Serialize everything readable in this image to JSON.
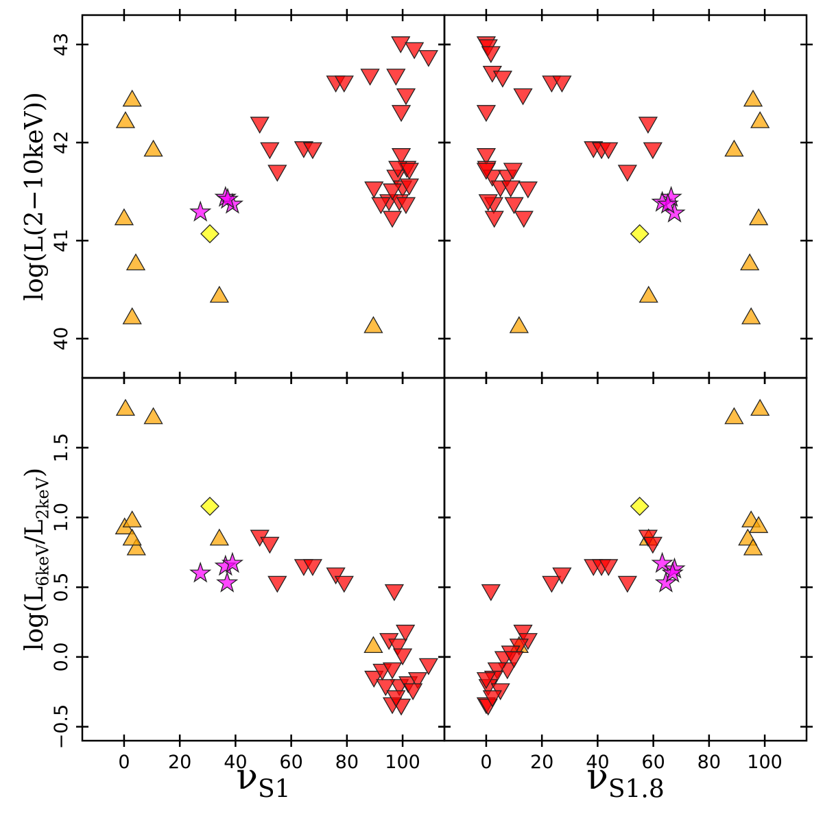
{
  "chart_data": [
    {
      "type": "scatter",
      "ylabel": "log(L(2−10keV))",
      "xtick_labels": false,
      "ytick_labels": true,
      "xlim": [
        -15,
        115
      ],
      "xticks": [
        0,
        20,
        40,
        60,
        80,
        100
      ],
      "ylim": [
        39.6,
        43.3
      ],
      "yticks": [
        40,
        41,
        42,
        43
      ],
      "series": [
        {
          "color": "#ffa500",
          "marker": "triangle-up",
          "x": [
            2.9,
            0.5,
            10.5,
            0,
            4.2,
            2.9,
            34.2,
            89.5
          ],
          "values": [
            42.44,
            42.22,
            41.93,
            41.23,
            40.77,
            40.22,
            40.44,
            40.13
          ]
        },
        {
          "color": "#ffff00",
          "marker": "diamond",
          "x": [
            30.8
          ],
          "values": [
            41.07
          ]
        },
        {
          "color": "#ff00ff",
          "marker": "star",
          "x": [
            27.4,
            36.4,
            38.9,
            37.2
          ],
          "values": [
            41.29,
            41.44,
            41.37,
            41.42
          ]
        },
        {
          "color": "#ff0000",
          "marker": "triangle-down",
          "x": [
            48.7,
            52.3,
            55,
            64.5,
            67.7,
            76,
            79,
            88.3,
            97.6,
            99.3,
            104.2,
            109.3,
            101.2,
            99.5,
            89.7,
            95.1,
            96.3,
            99.5,
            101.5,
            97.6,
            100,
            102.4,
            92.2,
            98.8,
            101.2,
            96.3,
            98.3,
            102.4
          ],
          "values": [
            42.19,
            41.93,
            41.7,
            41.94,
            41.93,
            42.61,
            42.61,
            42.68,
            42.68,
            43.01,
            42.95,
            42.87,
            42.48,
            42.31,
            41.53,
            41.4,
            41.23,
            41.87,
            41.74,
            41.65,
            41.54,
            41.56,
            41.37,
            41.4,
            41.37,
            41.51,
            41.74,
            41.72
          ]
        }
      ]
    },
    {
      "type": "scatter",
      "xtick_labels": false,
      "ytick_labels": false,
      "xlim": [
        -15,
        115
      ],
      "xticks": [
        0,
        20,
        40,
        60,
        80,
        100
      ],
      "ylim": [
        39.6,
        43.3
      ],
      "yticks": [
        40,
        41,
        42,
        43
      ],
      "series": [
        {
          "color": "#ffa500",
          "marker": "triangle-up",
          "x": [
            95.8,
            98.3,
            89,
            97.8,
            94.6,
            95.1,
            58.3,
            11.8
          ],
          "values": [
            42.44,
            42.22,
            41.93,
            41.23,
            40.77,
            40.22,
            40.44,
            40.13
          ]
        },
        {
          "color": "#ffff00",
          "marker": "diamond",
          "x": [
            55.1
          ],
          "values": [
            41.07
          ]
        },
        {
          "color": "#ff00ff",
          "marker": "star",
          "x": [
            63.2,
            66.4,
            67.6,
            65.2
          ],
          "values": [
            41.39,
            41.44,
            41.28,
            41.37
          ]
        },
        {
          "color": "#ff0000",
          "marker": "triangle-down",
          "x": [
            0,
            0.7,
            1.7,
            2.2,
            5.9,
            0,
            13.2,
            23.5,
            27.2,
            38.5,
            41.4,
            43.9,
            58.1,
            59.8,
            50.7,
            0,
            0.2,
            2.2,
            5.1,
            7.6,
            9.6,
            2.7,
            0.7,
            8.8,
            15,
            13.5,
            10,
            2.9,
            0
          ],
          "values": [
            43.01,
            42.98,
            42.91,
            42.71,
            42.66,
            42.31,
            42.48,
            42.61,
            42.61,
            41.94,
            41.93,
            41.93,
            42.19,
            41.93,
            41.7,
            41.87,
            41.74,
            41.65,
            41.54,
            41.65,
            41.72,
            41.37,
            41.4,
            41.54,
            41.53,
            41.23,
            41.37,
            41.23,
            41.72
          ]
        }
      ]
    },
    {
      "type": "scatter",
      "ylabel": [
        "log(L",
        "6keV",
        "/L",
        "2keV",
        ")"
      ],
      "xlabel": [
        "ν",
        "S1"
      ],
      "xtick_labels": true,
      "ytick_labels": true,
      "xlim": [
        -15,
        115
      ],
      "xticks": [
        0,
        20,
        40,
        60,
        80,
        100
      ],
      "ylim": [
        -0.6,
        2.0
      ],
      "yticks": [
        {
          "value": -0.5,
          "label": "−0.5"
        },
        {
          "value": 0,
          "label": "0.0"
        },
        0.5,
        {
          "value": 1,
          "label": "1.0"
        },
        1.5
      ],
      "series": [
        {
          "color": "#ffa500",
          "marker": "triangle-up",
          "x": [
            0.5,
            10.5,
            0.2,
            2.9,
            4.4,
            2.9,
            34.2,
            89.5
          ],
          "values": [
            1.78,
            1.72,
            0.93,
            0.98,
            0.78,
            0.85,
            0.85,
            0.08
          ]
        },
        {
          "color": "#ffff00",
          "marker": "diamond",
          "x": [
            30.8
          ],
          "values": [
            1.08
          ]
        },
        {
          "color": "#ff00ff",
          "marker": "star",
          "x": [
            27.4,
            36.4,
            38.9,
            37
          ],
          "values": [
            0.6,
            0.65,
            0.67,
            0.53
          ]
        },
        {
          "color": "#ff0000",
          "marker": "triangle-down",
          "x": [
            48.7,
            52.3,
            55,
            64.5,
            67.7,
            76,
            79,
            97,
            109.3,
            89.7,
            92.7,
            95.1,
            98.3,
            101,
            100,
            96.3,
            99.5,
            98.8,
            102,
            105.4,
            96.3,
            103.7,
            93.9,
            97.6
          ],
          "values": [
            0.86,
            0.81,
            0.53,
            0.65,
            0.65,
            0.59,
            0.53,
            0.47,
            -0.06,
            -0.15,
            -0.1,
            0.12,
            0.08,
            0.18,
            0.01,
            -0.34,
            -0.35,
            -0.21,
            -0.19,
            -0.16,
            -0.09,
            -0.24,
            -0.21,
            -0.29
          ]
        }
      ]
    },
    {
      "type": "scatter",
      "xlabel": [
        "ν",
        "S1.8"
      ],
      "xtick_labels": true,
      "ytick_labels": false,
      "xlim": [
        -15,
        115
      ],
      "xticks": [
        0,
        20,
        40,
        60,
        80,
        100
      ],
      "ylim": [
        -0.6,
        2.0
      ],
      "yticks": [
        {
          "value": -0.5,
          "label": "−0.5"
        },
        {
          "value": 0,
          "label": "0.0"
        },
        0.5,
        {
          "value": 1,
          "label": "1.0"
        },
        1.5
      ],
      "series": [
        {
          "color": "#ffa500",
          "marker": "triangle-up",
          "x": [
            89,
            98.3,
            95.1,
            97.8,
            93.9,
            95.8,
            58.3,
            11.8
          ],
          "values": [
            1.72,
            1.78,
            0.98,
            0.94,
            0.85,
            0.78,
            0.85,
            0.08
          ]
        },
        {
          "color": "#ffff00",
          "marker": "diamond",
          "x": [
            55.1
          ],
          "values": [
            1.08
          ]
        },
        {
          "color": "#ff00ff",
          "marker": "star",
          "x": [
            63.2,
            67.6,
            64.5,
            66.9
          ],
          "values": [
            0.67,
            0.63,
            0.53,
            0.6
          ]
        },
        {
          "color": "#ff0000",
          "marker": "triangle-down",
          "x": [
            58.1,
            59.8,
            50.7,
            38.5,
            41.4,
            43.9,
            23.5,
            27.2,
            1.7,
            13.2,
            15,
            11.8,
            8.8,
            6.4,
            7.6,
            3.9,
            2.7,
            0.7,
            0,
            0,
            0.7,
            5.1,
            2.2,
            10
          ],
          "values": [
            0.86,
            0.81,
            0.53,
            0.65,
            0.65,
            0.65,
            0.53,
            0.59,
            0.47,
            0.18,
            0.12,
            0.08,
            0.03,
            -0.01,
            -0.09,
            -0.09,
            -0.15,
            -0.21,
            -0.16,
            -0.34,
            -0.35,
            -0.24,
            -0.29,
            -0.01
          ]
        }
      ]
    }
  ]
}
